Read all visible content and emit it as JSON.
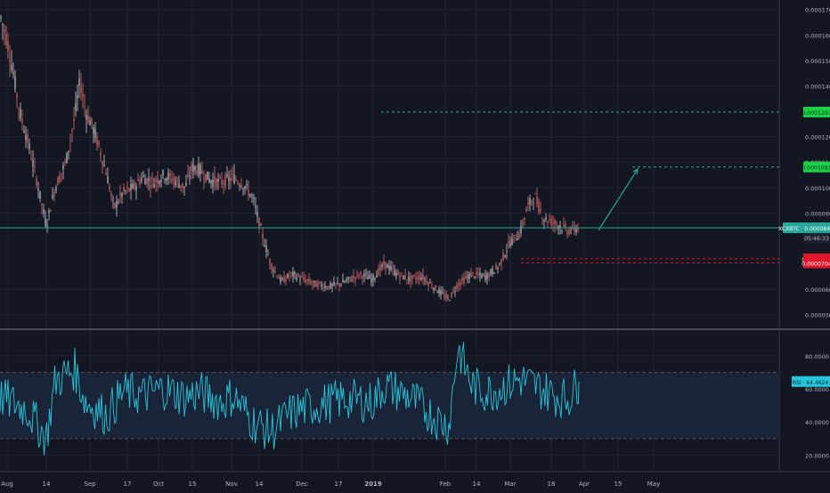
{
  "theme": {
    "background": "#131722",
    "grid": "#1f2433",
    "axis_text": "#b2b5be",
    "candle_up": "#c8c8cc",
    "candle_down": "#e26b6b",
    "rsi_line": "#26c6da",
    "rsi_band": "#1a2439",
    "rsi_marker": "#2962ff",
    "price_line": "#26a69a",
    "target_green": "#1cd146",
    "stop_red": "#e0162b",
    "arrow": "#26a69a"
  },
  "chart_data": [
    {
      "type": "candlestick",
      "symbol_label": "XCXBTC",
      "current_price": "0.0000842",
      "countdown": "05:46:33",
      "ylim": [
        4.5e-05,
        0.000172
      ],
      "y_ticks": [
        "0.0000500",
        "0.0000600",
        "0.0000900",
        "0.0001000",
        "0.0001100",
        "0.0001200",
        "0.0001400",
        "0.0001500",
        "0.0001600",
        "0.0001700"
      ],
      "x_ticks": [
        "Aug",
        "14",
        "Sep",
        "17",
        "Oct",
        "15",
        "Nov",
        "14",
        "Dec",
        "17",
        "2019",
        "Feb",
        "14",
        "Mar",
        "18",
        "Apr",
        "15",
        "May"
      ],
      "price_path": [
        [
          0,
          0.000168
        ],
        [
          8,
          0.000158
        ],
        [
          15,
          0.000145
        ],
        [
          22,
          0.00013
        ],
        [
          30,
          0.00012
        ],
        [
          40,
          0.000105
        ],
        [
          52,
          8.5e-05
        ],
        [
          62,
          0.0001
        ],
        [
          74,
          0.00011
        ],
        [
          84,
          0.000128
        ],
        [
          90,
          0.000142
        ],
        [
          96,
          0.00013
        ],
        [
          104,
          0.000124
        ],
        [
          112,
          0.000115
        ],
        [
          120,
          0.000105
        ],
        [
          128,
          9.2e-05
        ],
        [
          138,
          9.8e-05
        ],
        [
          150,
          0.0001
        ],
        [
          160,
          0.000104
        ],
        [
          172,
          0.000102
        ],
        [
          184,
          0.000105
        ],
        [
          196,
          0.000103
        ],
        [
          208,
          0.0001
        ],
        [
          216,
          0.000108
        ],
        [
          224,
          0.000107
        ],
        [
          236,
          0.000103
        ],
        [
          248,
          0.000102
        ],
        [
          262,
          0.000104
        ],
        [
          274,
          0.000101
        ],
        [
          284,
          9.6e-05
        ],
        [
          294,
          8.2e-05
        ],
        [
          304,
          7e-05
        ],
        [
          316,
          6.3e-05
        ],
        [
          328,
          6.6e-05
        ],
        [
          340,
          6.4e-05
        ],
        [
          354,
          6.2e-05
        ],
        [
          370,
          6.1e-05
        ],
        [
          388,
          6.3e-05
        ],
        [
          404,
          6.6e-05
        ],
        [
          418,
          6.4e-05
        ],
        [
          432,
          7e-05
        ],
        [
          446,
          6.6e-05
        ],
        [
          460,
          6.4e-05
        ],
        [
          474,
          6.5e-05
        ],
        [
          490,
          6e-05
        ],
        [
          504,
          5.6e-05
        ],
        [
          514,
          6.2e-05
        ],
        [
          530,
          6.6e-05
        ],
        [
          546,
          6.5e-05
        ],
        [
          560,
          6.9e-05
        ],
        [
          572,
          7.8e-05
        ],
        [
          584,
          8.2e-05
        ],
        [
          592,
          9.2e-05
        ],
        [
          600,
          9.7e-05
        ],
        [
          610,
          8.8e-05
        ],
        [
          624,
          8.6e-05
        ],
        [
          638,
          8.3e-05
        ],
        [
          650,
          8.42e-05
        ]
      ],
      "horizontal_levels": [
        {
          "label": "0.0001297",
          "value": 0.0001297,
          "style": "target",
          "x_start": 428
        },
        {
          "label": "0.0001081",
          "value": 0.0001081,
          "style": "target",
          "x_start": 710
        },
        {
          "label": "0.0000720",
          "value": 7.2e-05,
          "style": "stop",
          "x_start": 585
        },
        {
          "label": "0.0000704",
          "value": 7.04e-05,
          "style": "stop",
          "x_start": 585
        }
      ],
      "projection_arrow": {
        "from": [
          672,
          8.32e-05
        ],
        "to": [
          716,
          0.0001073
        ]
      }
    },
    {
      "type": "line",
      "indicator_label": "RSI",
      "current_value": "64.4624",
      "ylim": [
        10,
        95
      ],
      "y_ticks": [
        "20.0000",
        "40.0000",
        "60.0000",
        "80.0000"
      ],
      "band": [
        30,
        70
      ],
      "rsi_path": [
        [
          0,
          55
        ],
        [
          30,
          48
        ],
        [
          52,
          30
        ],
        [
          62,
          65
        ],
        [
          84,
          72
        ],
        [
          96,
          52
        ],
        [
          120,
          44
        ],
        [
          138,
          58
        ],
        [
          160,
          56
        ],
        [
          184,
          60
        ],
        [
          208,
          55
        ],
        [
          224,
          58
        ],
        [
          248,
          52
        ],
        [
          262,
          56
        ],
        [
          284,
          40
        ],
        [
          304,
          34
        ],
        [
          328,
          46
        ],
        [
          354,
          50
        ],
        [
          388,
          54
        ],
        [
          418,
          52
        ],
        [
          432,
          62
        ],
        [
          460,
          55
        ],
        [
          490,
          42
        ],
        [
          504,
          38
        ],
        [
          514,
          85
        ],
        [
          530,
          62
        ],
        [
          546,
          58
        ],
        [
          560,
          60
        ],
        [
          584,
          66
        ],
        [
          600,
          62
        ],
        [
          624,
          56
        ],
        [
          638,
          54
        ],
        [
          650,
          64.4624
        ]
      ]
    }
  ]
}
